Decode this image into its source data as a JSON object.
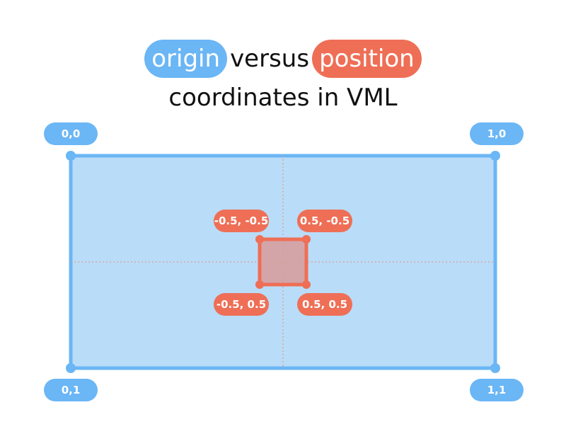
{
  "title": {
    "origin_word": "origin",
    "middle_word": "versus",
    "position_word": "position",
    "line2": "coordinates in VML"
  },
  "colors": {
    "origin_blue": "#6bb6f5",
    "box_fill": "#b9dcf8",
    "position_red": "#ee6f56"
  },
  "origin_labels": {
    "top_left": "0,0",
    "top_right": "1,0",
    "bottom_left": "0,1",
    "bottom_right": "1,1"
  },
  "position_labels": {
    "top_left": "-0.5, -0.5",
    "top_right": "0.5, -0.5",
    "bottom_left": "-0.5, 0.5",
    "bottom_right": "0.5, 0.5"
  }
}
